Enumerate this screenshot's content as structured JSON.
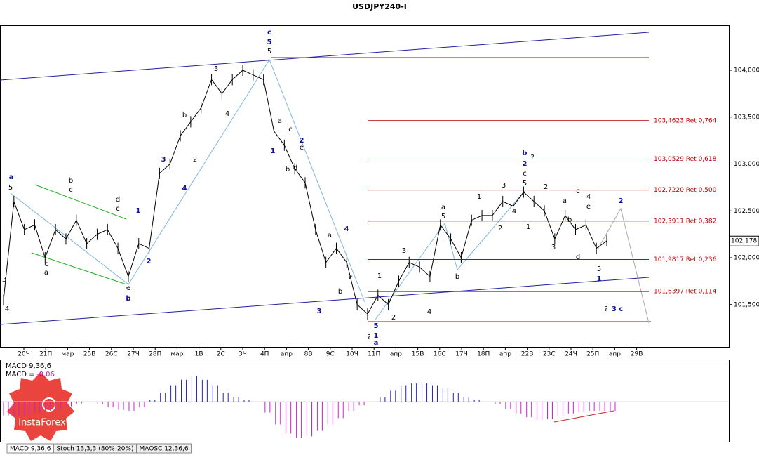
{
  "title": "USDJPY240-I",
  "price_axis": {
    "ticks": [
      {
        "value": 104,
        "label": "104,000"
      },
      {
        "value": 103.5,
        "label": "103,500"
      },
      {
        "value": 103,
        "label": "103,000"
      },
      {
        "value": 102.5,
        "label": "102,500"
      },
      {
        "value": 102,
        "label": "102,000"
      },
      {
        "value": 101.5,
        "label": "101,500"
      }
    ],
    "current": {
      "value": 102.178,
      "label": "102,178"
    }
  },
  "date_labels": [
    "20Ч",
    "21П",
    "мар",
    "25В",
    "26С",
    "27Ч",
    "28П",
    "мар",
    "1В",
    "2С",
    "3Ч",
    "4П",
    "апр",
    "8В",
    "9С",
    "10Ч",
    "11П",
    "апр",
    "15В",
    "16С",
    "17Ч",
    "18П",
    "апр",
    "22В",
    "23С",
    "24Ч",
    "25П",
    "апр",
    "29В"
  ],
  "fib_levels": [
    {
      "level": 103.4623,
      "label": "103,4623 Ret 0,764"
    },
    {
      "level": 103.0529,
      "label": "103,0529 Ret 0,618"
    },
    {
      "level": 102.722,
      "label": "102,7220 Ret 0,500"
    },
    {
      "level": 102.3911,
      "label": "102,3911 Ret 0,382"
    },
    {
      "level": 101.9817,
      "label": "101,9817 Ret 0,236"
    },
    {
      "level": 101.6397,
      "label": "101,6397 Ret 0,114"
    }
  ],
  "closes": [
    101.55,
    102.6,
    102.3,
    102.35,
    102.0,
    102.3,
    102.2,
    102.4,
    102.15,
    102.25,
    102.3,
    102.1,
    101.8,
    102.15,
    102.1,
    102.9,
    103.0,
    103.3,
    103.45,
    103.6,
    103.9,
    103.75,
    103.9,
    104.0,
    103.95,
    103.9,
    103.35,
    103.2,
    102.95,
    102.8,
    102.3,
    101.95,
    102.1,
    101.95,
    101.5,
    101.4,
    101.6,
    101.5,
    101.75,
    101.95,
    101.9,
    101.8,
    102.35,
    102.2,
    102.0,
    102.4,
    102.45,
    102.45,
    102.6,
    102.55,
    102.7,
    102.6,
    102.5,
    102.2,
    102.45,
    102.3,
    102.35,
    102.1,
    102.18
  ],
  "wave_labels": [
    "a",
    "b",
    "1",
    "2",
    "3",
    "4",
    "c",
    "5",
    "5",
    "1",
    "2",
    "3",
    "4",
    "5",
    "1",
    "a",
    "b",
    "2",
    "2",
    "1",
    "3 c",
    "?",
    "?",
    "?",
    "c",
    "5",
    "b",
    "c",
    "d",
    "c",
    "a",
    "c",
    "e",
    "3",
    "4",
    "3",
    "4",
    "b",
    "2",
    "a",
    "b",
    "c",
    "d",
    "e",
    "a",
    "b",
    "c",
    "1",
    "2",
    "3",
    "4",
    "5",
    "a",
    "b",
    "1",
    "2",
    "3",
    "4",
    "5",
    "1",
    "2",
    "3",
    "a",
    "b",
    "c",
    "d",
    "4",
    "e",
    "5"
  ],
  "macd": {
    "title": "MACD 9,36,6",
    "prefix": "MACD =",
    "value_label": "-0,06",
    "histogram": [
      -0.15,
      -0.16,
      -0.15,
      -0.12,
      -0.1,
      -0.08,
      -0.05,
      -0.02,
      0.0,
      -0.03,
      -0.06,
      -0.09,
      -0.1,
      -0.06,
      0.02,
      0.1,
      0.18,
      0.24,
      0.28,
      0.24,
      0.18,
      0.1,
      0.05,
      0.02,
      0.0,
      -0.12,
      -0.25,
      -0.35,
      -0.4,
      -0.38,
      -0.32,
      -0.25,
      -0.18,
      -0.1,
      -0.04,
      0.0,
      0.05,
      0.12,
      0.18,
      0.2,
      0.2,
      0.18,
      0.15,
      0.1,
      0.05,
      0.02,
      0.0,
      -0.03,
      -0.08,
      -0.13,
      -0.17,
      -0.2,
      -0.19,
      -0.16,
      -0.13,
      -0.11,
      -0.1,
      -0.1,
      -0.1
    ]
  },
  "tabs": [
    "MACD 9,36,6",
    "Stoch 13,3,3 (80%-20%)",
    "MAOSC 12,36,6"
  ],
  "logo": "InstaForex"
}
